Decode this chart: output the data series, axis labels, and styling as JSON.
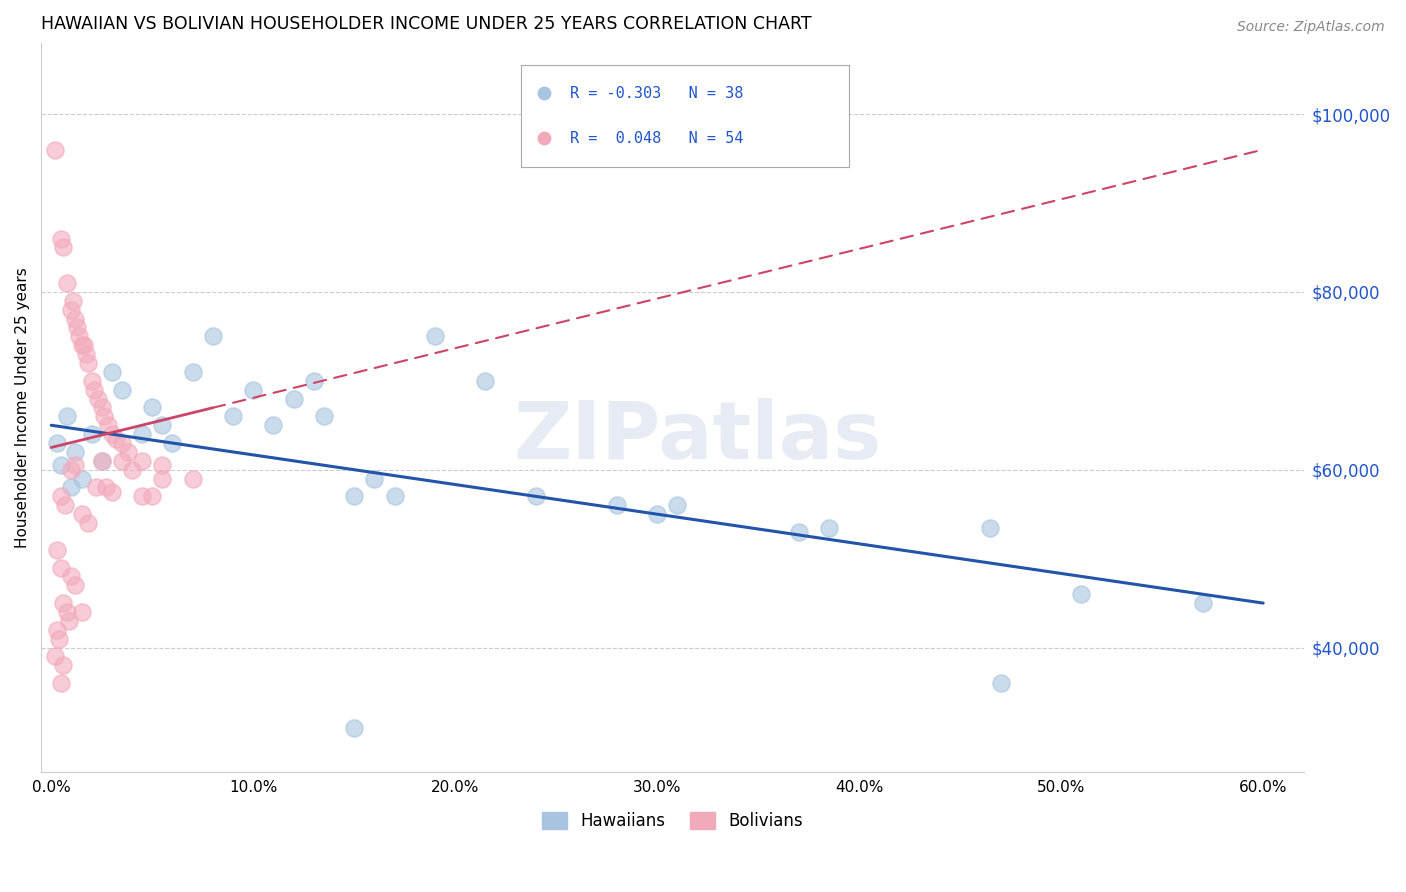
{
  "title": "HAWAIIAN VS BOLIVIAN HOUSEHOLDER INCOME UNDER 25 YEARS CORRELATION CHART",
  "source": "Source: ZipAtlas.com",
  "ylabel": "Householder Income Under 25 years",
  "ytick_labels": [
    "$40,000",
    "$60,000",
    "$80,000",
    "$100,000"
  ],
  "ytick_vals": [
    40000,
    60000,
    80000,
    100000
  ],
  "ylim": [
    26000,
    108000
  ],
  "xlim": [
    -0.5,
    62
  ],
  "watermark": "ZIPatlas",
  "blue_R": "-0.303",
  "blue_N": "38",
  "pink_R": "0.048",
  "pink_N": "54",
  "blue_color": "#A8C4E0",
  "pink_color": "#F2AABB",
  "blue_line_color": "#2255AA",
  "pink_line_color": "#CC4466",
  "blue_scatter": [
    [
      0.3,
      63000
    ],
    [
      0.5,
      60500
    ],
    [
      0.8,
      66000
    ],
    [
      1.0,
      58000
    ],
    [
      1.2,
      62000
    ],
    [
      1.5,
      59000
    ],
    [
      2.0,
      64000
    ],
    [
      2.5,
      61000
    ],
    [
      3.0,
      71000
    ],
    [
      3.5,
      69000
    ],
    [
      4.5,
      64000
    ],
    [
      5.0,
      67000
    ],
    [
      5.5,
      65000
    ],
    [
      6.0,
      63000
    ],
    [
      7.0,
      71000
    ],
    [
      8.0,
      75000
    ],
    [
      9.0,
      66000
    ],
    [
      10.0,
      69000
    ],
    [
      11.0,
      65000
    ],
    [
      12.0,
      68000
    ],
    [
      13.0,
      70000
    ],
    [
      13.5,
      66000
    ],
    [
      15.0,
      57000
    ],
    [
      16.0,
      59000
    ],
    [
      17.0,
      57000
    ],
    [
      19.0,
      75000
    ],
    [
      21.5,
      70000
    ],
    [
      24.0,
      57000
    ],
    [
      28.0,
      56000
    ],
    [
      30.0,
      55000
    ],
    [
      31.0,
      56000
    ],
    [
      37.0,
      53000
    ],
    [
      38.5,
      53500
    ],
    [
      46.5,
      53500
    ],
    [
      51.0,
      46000
    ],
    [
      57.0,
      45000
    ],
    [
      15.0,
      31000
    ],
    [
      47.0,
      36000
    ]
  ],
  "pink_scatter": [
    [
      0.2,
      96000
    ],
    [
      0.5,
      86000
    ],
    [
      0.6,
      85000
    ],
    [
      0.8,
      81000
    ],
    [
      1.0,
      78000
    ],
    [
      1.1,
      79000
    ],
    [
      1.2,
      77000
    ],
    [
      1.3,
      76000
    ],
    [
      1.4,
      75000
    ],
    [
      1.5,
      74000
    ],
    [
      1.6,
      74000
    ],
    [
      1.7,
      73000
    ],
    [
      1.8,
      72000
    ],
    [
      2.0,
      70000
    ],
    [
      2.1,
      69000
    ],
    [
      2.3,
      68000
    ],
    [
      2.5,
      67000
    ],
    [
      2.6,
      66000
    ],
    [
      2.8,
      65000
    ],
    [
      3.0,
      64000
    ],
    [
      3.2,
      63500
    ],
    [
      3.5,
      63000
    ],
    [
      3.8,
      62000
    ],
    [
      4.5,
      61000
    ],
    [
      5.5,
      60500
    ],
    [
      7.0,
      59000
    ],
    [
      1.0,
      60000
    ],
    [
      1.2,
      60500
    ],
    [
      2.5,
      61000
    ],
    [
      3.5,
      61000
    ],
    [
      4.0,
      60000
    ],
    [
      5.5,
      59000
    ],
    [
      0.5,
      57000
    ],
    [
      0.7,
      56000
    ],
    [
      1.5,
      55000
    ],
    [
      1.8,
      54000
    ],
    [
      2.2,
      58000
    ],
    [
      2.7,
      58000
    ],
    [
      3.0,
      57500
    ],
    [
      4.5,
      57000
    ],
    [
      5.0,
      57000
    ],
    [
      0.3,
      51000
    ],
    [
      0.5,
      49000
    ],
    [
      1.0,
      48000
    ],
    [
      1.2,
      47000
    ],
    [
      0.6,
      45000
    ],
    [
      0.8,
      44000
    ],
    [
      0.9,
      43000
    ],
    [
      0.3,
      42000
    ],
    [
      0.4,
      41000
    ],
    [
      0.2,
      39000
    ],
    [
      0.5,
      36000
    ],
    [
      0.6,
      38000
    ],
    [
      1.5,
      44000
    ]
  ],
  "blue_trendline": [
    [
      0,
      65000
    ],
    [
      60,
      45000
    ]
  ],
  "pink_trendline": [
    [
      0,
      62500
    ],
    [
      60,
      96000
    ]
  ]
}
